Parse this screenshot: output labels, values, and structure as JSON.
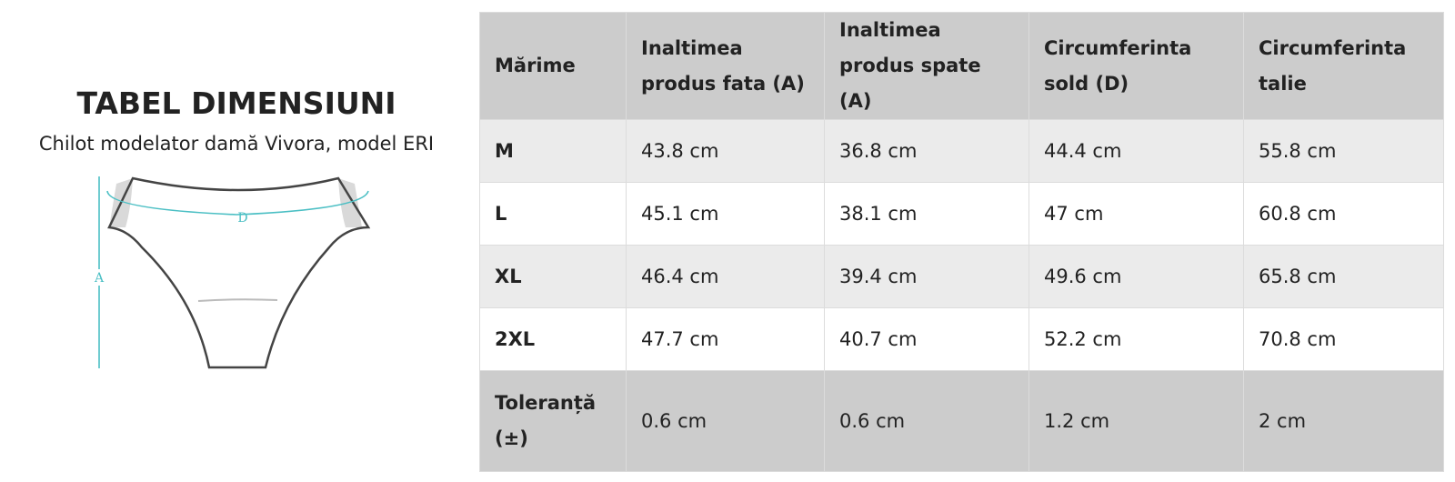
{
  "header": {
    "title": "TABEL DIMENSIUNI",
    "subtitle": "Chilot modelator damă Vivora, model ERI"
  },
  "diagram": {
    "labels": [
      "D",
      "A"
    ]
  },
  "table": {
    "columns": [
      "Mărime",
      "Inaltimea produs fata (A)",
      "Inaltimea produs spate (A)",
      "Circumferinta sold (D)",
      "Circumferinta talie"
    ],
    "rows": [
      [
        "M",
        "43.8 cm",
        "36.8 cm",
        "44.4 cm",
        "55.8 cm"
      ],
      [
        "L",
        "45.1 cm",
        "38.1 cm",
        "47 cm",
        "60.8 cm"
      ],
      [
        "XL",
        "46.4 cm",
        "39.4 cm",
        "49.6 cm",
        "65.8 cm"
      ],
      [
        "2XL",
        "47.7 cm",
        "40.7 cm",
        "52.2 cm",
        "70.8 cm"
      ],
      [
        "Toleranță (±)",
        "0.6 cm",
        "0.6 cm",
        "1.2 cm",
        "2 cm"
      ]
    ]
  }
}
